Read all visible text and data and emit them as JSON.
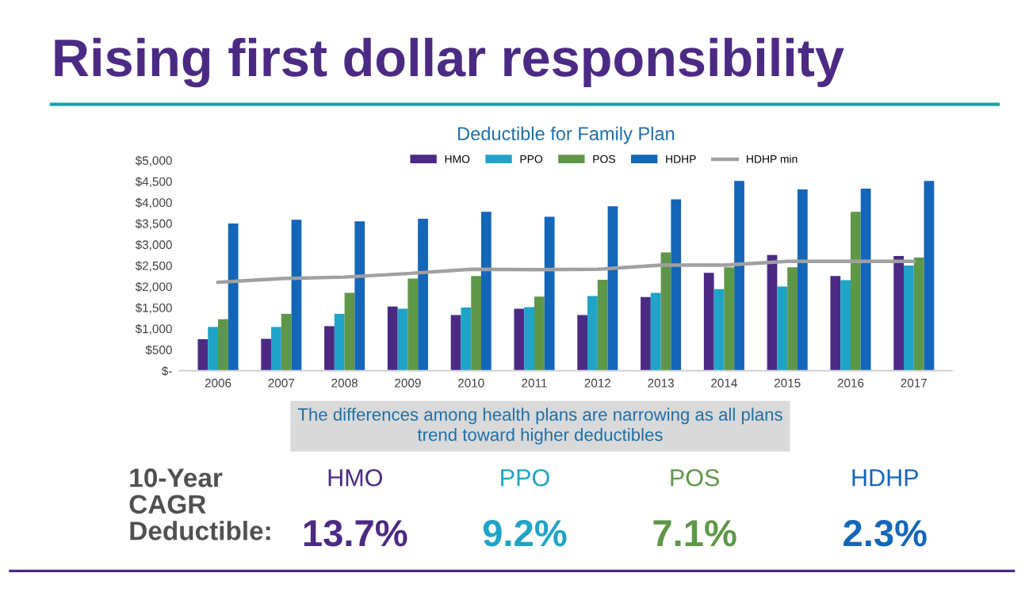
{
  "chart_data": {
    "type": "bar",
    "title": "Rising first dollar responsibility",
    "subtitle": "Deductible for Family Plan",
    "categories": [
      "2006",
      "2007",
      "2008",
      "2009",
      "2010",
      "2011",
      "2012",
      "2013",
      "2014",
      "2015",
      "2016",
      "2017"
    ],
    "series": [
      {
        "name": "HMO",
        "color": "#4b2a84",
        "values": [
          750,
          760,
          1060,
          1525,
          1325,
          1475,
          1325,
          1750,
          2325,
          2750,
          2250,
          2725
        ]
      },
      {
        "name": "PPO",
        "color": "#1fa3c8",
        "values": [
          1040,
          1040,
          1350,
          1475,
          1500,
          1510,
          1775,
          1850,
          1940,
          2000,
          2150,
          2500
        ]
      },
      {
        "name": "POS",
        "color": "#5e9748",
        "values": [
          1225,
          1350,
          1850,
          2190,
          2250,
          1760,
          2160,
          2810,
          2460,
          2460,
          3775,
          2690
        ]
      },
      {
        "name": "HDHP",
        "color": "#1466b8",
        "values": [
          3500,
          3590,
          3550,
          3610,
          3775,
          3660,
          3910,
          4075,
          4510,
          4310,
          4325,
          4510
        ]
      },
      {
        "name": "HDHP min",
        "type": "line",
        "color": "#a0a0a0",
        "marker": "none",
        "values": [
          2100,
          2190,
          2225,
          2310,
          2410,
          2400,
          2410,
          2510,
          2510,
          2600,
          2600,
          2600
        ]
      }
    ],
    "ylim": [
      0,
      5000
    ],
    "yticks": [
      {
        "value": 0,
        "label": "$-"
      },
      {
        "value": 500,
        "label": "$500"
      },
      {
        "value": 1000,
        "label": "$1,000"
      },
      {
        "value": 1500,
        "label": "$1,500"
      },
      {
        "value": 2000,
        "label": "$2,000"
      },
      {
        "value": 2500,
        "label": "$2,500"
      },
      {
        "value": 3000,
        "label": "$3,000"
      },
      {
        "value": 3500,
        "label": "$3,500"
      },
      {
        "value": 4000,
        "label": "$4,000"
      },
      {
        "value": 4500,
        "label": "$4,500"
      },
      {
        "value": 5000,
        "label": "$5,000"
      }
    ],
    "grid": false,
    "legend": "top",
    "annotations": [
      "The differences among health plans are narrowing as all plans\ntrend toward higher deductibles",
      "10-Year\nCAGR\nDeductible:",
      "HMO",
      "13.7%",
      "PPO",
      "9.2%",
      "POS",
      "7.1%",
      "HDHP",
      "2.3%"
    ]
  }
}
